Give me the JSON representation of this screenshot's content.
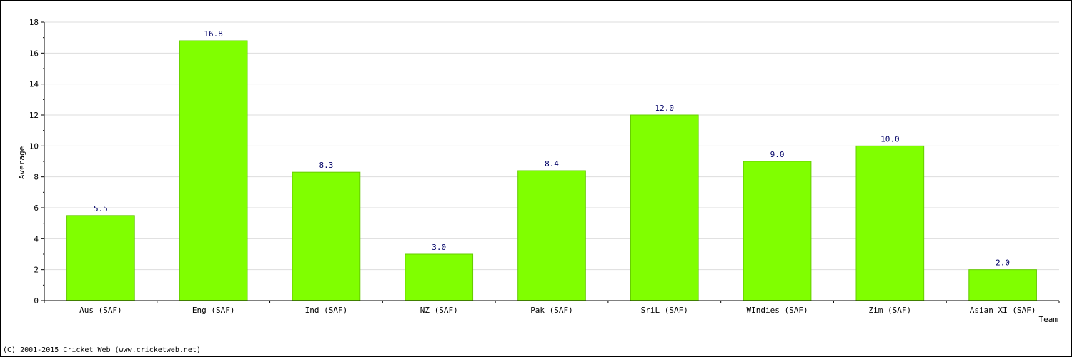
{
  "chart_data": {
    "type": "bar",
    "title": "",
    "xlabel": "Team",
    "ylabel": "Average",
    "ylim": [
      0,
      18
    ],
    "yticks": [
      0,
      2,
      4,
      6,
      8,
      10,
      12,
      14,
      16,
      18
    ],
    "grid": true,
    "categories": [
      "Aus (SAF)",
      "Eng (SAF)",
      "Ind (SAF)",
      "NZ (SAF)",
      "Pak (SAF)",
      "SriL (SAF)",
      "WIndies (SAF)",
      "Zim (SAF)",
      "Asian XI (SAF)"
    ],
    "values": [
      5.5,
      16.8,
      8.3,
      3.0,
      8.4,
      12.0,
      9.0,
      10.0,
      2.0
    ],
    "value_labels": [
      "5.5",
      "16.8",
      "8.3",
      "3.0",
      "8.4",
      "12.0",
      "9.0",
      "10.0",
      "2.0"
    ],
    "bar_color": "#80ff00",
    "label_color": "#000066"
  },
  "footer": {
    "copyright": "(C) 2001-2015 Cricket Web (www.cricketweb.net)"
  }
}
